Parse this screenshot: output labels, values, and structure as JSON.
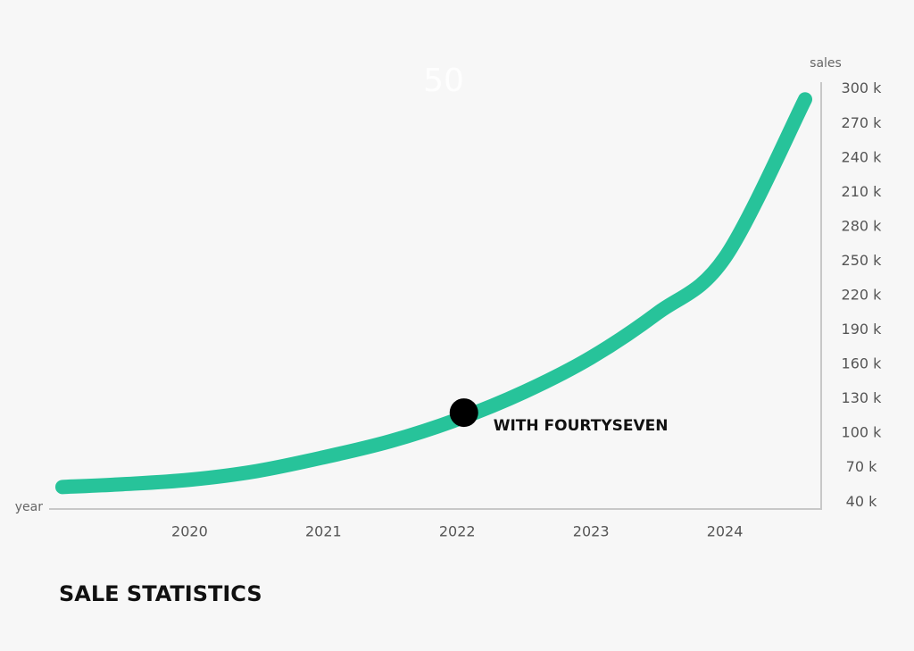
{
  "chart_data": {
    "type": "line",
    "title": "SALE STATISTICS",
    "watermark": "50",
    "xlabel": "year",
    "ylabel": "sales",
    "x": [
      2019.05,
      2019.5,
      2020,
      2020.5,
      2021,
      2021.5,
      2022,
      2022.5,
      2023,
      2023.5,
      2024,
      2024.6
    ],
    "series": [
      {
        "color": "#27c39a",
        "values": [
          0.44,
          0.52,
          0.65,
          0.9,
          1.3,
          1.77,
          2.4,
          3.2,
          4.2,
          5.5,
          7.1,
          11.7
        ]
      }
    ],
    "xlim": [
      2018.95,
      2024.72
    ],
    "xticks": [
      2020,
      2021,
      2022,
      2023,
      2024
    ],
    "ylim": [
      -0.2,
      12.2
    ],
    "y_categories": [
      "40 k",
      "70 k",
      "100 k",
      "130 k",
      "160 k",
      "190 k",
      "220 k",
      "250 k",
      "280 k",
      "210 k",
      "240 k",
      "270 k",
      "300 k"
    ],
    "annotations": [
      {
        "text": "WITH FOURTYSEVEN",
        "x": 2022.05,
        "y": 2.6
      }
    ]
  }
}
